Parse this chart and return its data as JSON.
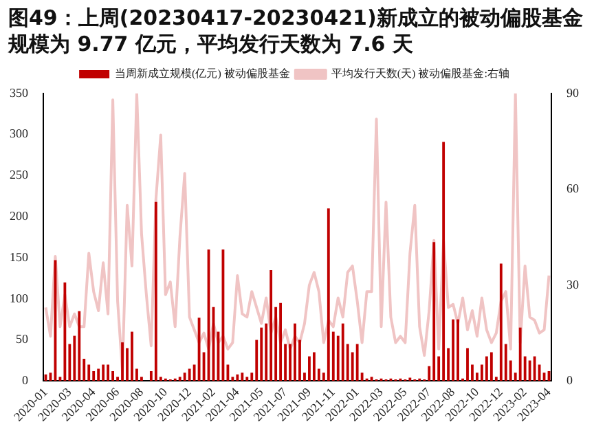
{
  "chart_data": {
    "type": "bar",
    "title": "图49：上周(20230417-20230421)新成立的被动偏股基金规模为 9.77 亿元，平均发行天数为 7.6 天",
    "categories": [
      "2020-01",
      null,
      null,
      null,
      null,
      "2020-03",
      null,
      null,
      null,
      null,
      "2020-04",
      null,
      null,
      null,
      null,
      "2020-06",
      null,
      null,
      null,
      null,
      "2020-08",
      null,
      null,
      null,
      null,
      "2020-10",
      null,
      null,
      null,
      null,
      "2020-12",
      null,
      null,
      null,
      null,
      "2021-02",
      null,
      null,
      null,
      null,
      "2021-04",
      null,
      null,
      null,
      null,
      "2021-05",
      null,
      null,
      null,
      null,
      "2021-07",
      null,
      null,
      null,
      null,
      "2021-09",
      null,
      null,
      null,
      null,
      "2021-11",
      null,
      null,
      null,
      null,
      "2022-01",
      null,
      null,
      null,
      null,
      "2022-03",
      null,
      null,
      null,
      null,
      "2022-05",
      null,
      null,
      null,
      null,
      "2022-07",
      null,
      null,
      null,
      null,
      "2022-08",
      null,
      null,
      null,
      null,
      "2022-10",
      null,
      null,
      null,
      null,
      "2022-12",
      null,
      null,
      null,
      null,
      "2023-02",
      null,
      null,
      null,
      null,
      "2023-04"
    ],
    "series": [
      {
        "name": "当周新成立规模(亿元) 被动偏股基金",
        "color": "#c00000",
        "values": [
          8,
          10,
          147,
          5,
          120,
          45,
          55,
          85,
          27,
          20,
          12,
          15,
          20,
          20,
          12,
          5,
          47,
          40,
          60,
          15,
          5,
          0,
          12,
          218,
          5,
          3,
          2,
          3,
          5,
          10,
          15,
          20,
          77,
          35,
          160,
          90,
          60,
          160,
          20,
          5,
          8,
          10,
          5,
          10,
          50,
          65,
          70,
          135,
          90,
          95,
          45,
          45,
          70,
          50,
          10,
          30,
          35,
          15,
          10,
          210,
          60,
          55,
          70,
          45,
          35,
          45,
          10,
          3,
          5,
          2,
          3,
          2,
          3,
          2,
          3,
          2,
          4,
          2,
          3,
          2,
          18,
          169,
          30,
          291,
          40,
          75,
          75,
          3,
          40,
          20,
          10,
          20,
          30,
          35,
          5,
          143,
          45,
          25,
          10,
          65,
          30,
          25,
          30,
          20,
          10,
          12
        ]
      },
      {
        "name": "平均发行天数(天) 被动偏股基金:右轴",
        "type": "line",
        "axis": "y2",
        "color": "#f0c4c4",
        "values": [
          23,
          14,
          39,
          17,
          27,
          17,
          21,
          17,
          17,
          40,
          28,
          22,
          37,
          21,
          88,
          25,
          3,
          55,
          36,
          90,
          46,
          27,
          11,
          57,
          77,
          27,
          31,
          17,
          45,
          65,
          20,
          16,
          12,
          15,
          10,
          18,
          12,
          14,
          10,
          12,
          33,
          21,
          20,
          28,
          23,
          18,
          26,
          15,
          20,
          12,
          16,
          10,
          14,
          12,
          18,
          30,
          34,
          28,
          12,
          19,
          17,
          26,
          20,
          34,
          36,
          25,
          12,
          28,
          28,
          82,
          17,
          56,
          20,
          12,
          14,
          12,
          40,
          55,
          17,
          8,
          22,
          44,
          10,
          44,
          23,
          24,
          18,
          26,
          16,
          22,
          14,
          26,
          16,
          12,
          15,
          25,
          28,
          10,
          90,
          12,
          36,
          20,
          19,
          15,
          16,
          33
        ]
      }
    ],
    "ylim": [
      0,
      350
    ],
    "yticks": [
      0,
      50,
      100,
      150,
      200,
      250,
      300,
      350
    ],
    "y2lim": [
      0,
      90
    ],
    "y2ticks": [
      0,
      30,
      60,
      90
    ],
    "grid": false,
    "legend": "top"
  }
}
